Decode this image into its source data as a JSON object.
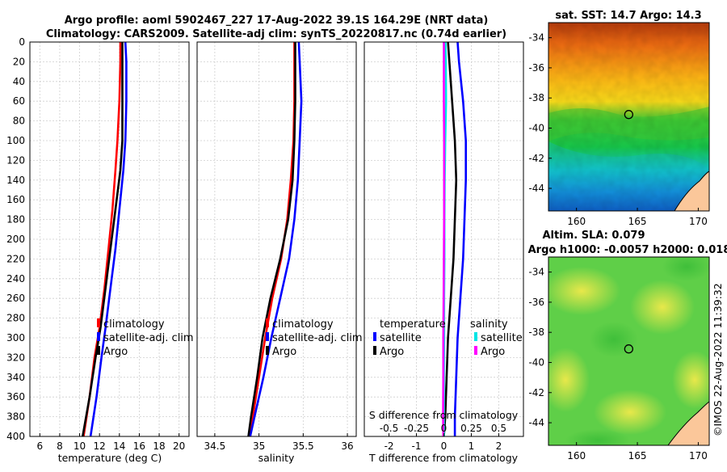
{
  "title": {
    "line1": "Argo profile: aoml 5902467_227 17-Aug-2022 39.1S 164.29E (NRT data)",
    "line2": "Climatology: CARS2009. Satellite-adj clim: synTS_20220817.nc (0.74d earlier)"
  },
  "credit": "©IMOS 22-Aug-2022 11:39:32",
  "colors": {
    "climatology": "#ff0000",
    "satellite": "#0000ff",
    "argo": "#000000",
    "salinity_satellite": "#00e5e5",
    "salinity_argo": "#ff00ff",
    "land": "#fbc79a"
  },
  "chart_data": [
    {
      "type": "line",
      "id": "temperature-profile",
      "xlabel": "temperature (deg C)",
      "ylabel": "",
      "xlim": [
        5,
        21
      ],
      "ylim": [
        400,
        0
      ],
      "xticks": [
        "6",
        "8",
        "10",
        "12",
        "14",
        "16",
        "18",
        "20"
      ],
      "yticks": [
        "0",
        "20",
        "40",
        "60",
        "80",
        "100",
        "120",
        "140",
        "160",
        "180",
        "200",
        "220",
        "240",
        "260",
        "280",
        "300",
        "320",
        "340",
        "360",
        "380",
        "400"
      ],
      "grid": true,
      "legend": [
        "climatology",
        "satellite-adj. clim",
        "Argo"
      ],
      "series": [
        {
          "name": "climatology",
          "color": "#ff0000",
          "depth": [
            0,
            20,
            60,
            100,
            130,
            170,
            210,
            250,
            290,
            320,
            360,
            400
          ],
          "values": [
            14.1,
            14.1,
            14.0,
            13.8,
            13.6,
            13.3,
            12.9,
            12.5,
            12.0,
            11.5,
            11.0,
            10.4
          ]
        },
        {
          "name": "satellite-adj. clim",
          "color": "#0000ff",
          "depth": [
            0,
            20,
            60,
            100,
            130,
            170,
            210,
            250,
            290,
            320,
            360,
            400
          ],
          "values": [
            14.6,
            14.7,
            14.7,
            14.6,
            14.4,
            14.0,
            13.6,
            13.1,
            12.6,
            12.2,
            11.7,
            11.1
          ]
        },
        {
          "name": "Argo",
          "color": "#000000",
          "depth": [
            0,
            20,
            60,
            100,
            130,
            170,
            210,
            250,
            290,
            320,
            360,
            400
          ],
          "values": [
            14.3,
            14.3,
            14.3,
            14.3,
            14.1,
            13.6,
            13.1,
            12.6,
            12.1,
            11.6,
            11.0,
            10.3
          ]
        }
      ]
    },
    {
      "type": "line",
      "id": "salinity-profile",
      "xlabel": "salinity",
      "ylabel": "",
      "xlim": [
        34.3,
        36.1
      ],
      "ylim": [
        400,
        0
      ],
      "xticks": [
        "34.5",
        "35",
        "35.5",
        "36"
      ],
      "grid": true,
      "legend": [
        "climatology",
        "satellite-adj. clim",
        "Argo"
      ],
      "series": [
        {
          "name": "climatology",
          "color": "#ff0000",
          "depth": [
            0,
            20,
            60,
            100,
            140,
            180,
            220,
            260,
            300,
            340,
            380,
            400
          ],
          "values": [
            35.4,
            35.4,
            35.4,
            35.39,
            35.36,
            35.32,
            35.25,
            35.15,
            35.07,
            35.0,
            34.93,
            34.9
          ]
        },
        {
          "name": "satellite-adj. clim",
          "color": "#0000ff",
          "depth": [
            0,
            20,
            60,
            100,
            140,
            180,
            220,
            260,
            300,
            340,
            380,
            400
          ],
          "values": [
            35.45,
            35.46,
            35.48,
            35.46,
            35.44,
            35.4,
            35.34,
            35.24,
            35.14,
            35.05,
            34.95,
            34.9
          ]
        },
        {
          "name": "Argo",
          "color": "#000000",
          "depth": [
            0,
            20,
            60,
            100,
            140,
            180,
            220,
            260,
            300,
            340,
            380,
            400
          ],
          "values": [
            35.41,
            35.41,
            35.41,
            35.4,
            35.38,
            35.33,
            35.24,
            35.13,
            35.04,
            34.98,
            34.91,
            34.88
          ]
        }
      ]
    },
    {
      "type": "line",
      "id": "difference-profile",
      "xlabel": "T difference from climatology",
      "top_label": "S difference from climatology",
      "ylabel": "",
      "xlim": [
        -2.9,
        2.9
      ],
      "ylim": [
        400,
        0
      ],
      "xticks": [
        "-2",
        "-1",
        "0",
        "1",
        "2"
      ],
      "sticks": [
        "-0.5",
        "-0.25",
        "0",
        "0.25",
        "0.5"
      ],
      "grid": true,
      "legend_t": {
        "title": "temperature",
        "items": [
          "satellite",
          "Argo"
        ]
      },
      "legend_s": {
        "title": "salinity",
        "items": [
          "satellite",
          "Argo"
        ]
      },
      "series": [
        {
          "name": "temperature satellite",
          "color": "#0000ff",
          "depth": [
            0,
            20,
            60,
            100,
            140,
            180,
            220,
            260,
            300,
            340,
            380,
            400
          ],
          "values": [
            0.5,
            0.55,
            0.7,
            0.8,
            0.8,
            0.75,
            0.7,
            0.6,
            0.5,
            0.45,
            0.4,
            0.4
          ]
        },
        {
          "name": "temperature Argo",
          "color": "#000000",
          "depth": [
            0,
            20,
            60,
            100,
            140,
            180,
            220,
            260,
            300,
            340,
            380,
            400
          ],
          "values": [
            0.15,
            0.2,
            0.3,
            0.4,
            0.45,
            0.4,
            0.35,
            0.25,
            0.15,
            0.1,
            0.05,
            0.0
          ]
        },
        {
          "name": "salinity satellite",
          "color": "#00e5e5",
          "depth": [
            0,
            20,
            60,
            100,
            140,
            180,
            220,
            260,
            300,
            340,
            380,
            400
          ],
          "values": [
            0.06,
            0.07,
            0.08,
            0.05,
            0.03,
            0.02,
            0.02,
            0.01,
            0.01,
            0.0,
            0.0,
            0.0
          ]
        },
        {
          "name": "salinity Argo",
          "color": "#ff00ff",
          "depth": [
            0,
            20,
            60,
            100,
            140,
            180,
            220,
            260,
            300,
            340,
            380,
            400
          ],
          "values": [
            0.0,
            0.0,
            0.0,
            0.01,
            0.01,
            0.01,
            0.0,
            -0.01,
            -0.02,
            -0.02,
            -0.03,
            -0.02
          ]
        }
      ]
    },
    {
      "type": "heatmap",
      "id": "sst-map",
      "title": "sat. SST: 14.7 Argo: 14.3",
      "xlim": [
        157.7,
        170.9
      ],
      "ylim": [
        -45.5,
        -33.0
      ],
      "xticks": [
        "160",
        "165",
        "170"
      ],
      "yticks": [
        "-34",
        "-36",
        "-38",
        "-40",
        "-42",
        "-44"
      ],
      "float_position": {
        "lon": 164.29,
        "lat": -39.1
      }
    },
    {
      "type": "heatmap",
      "id": "sla-map",
      "title": "Altim. SLA: 0.079",
      "subtitle": "Argo h1000: -0.0057 h2000: 0.018",
      "xlim": [
        157.7,
        170.9
      ],
      "ylim": [
        -45.5,
        -33.0
      ],
      "xticks": [
        "160",
        "165",
        "170"
      ],
      "yticks": [
        "-34",
        "-36",
        "-38",
        "-40",
        "-42",
        "-44"
      ],
      "float_position": {
        "lon": 164.29,
        "lat": -39.1
      }
    }
  ]
}
